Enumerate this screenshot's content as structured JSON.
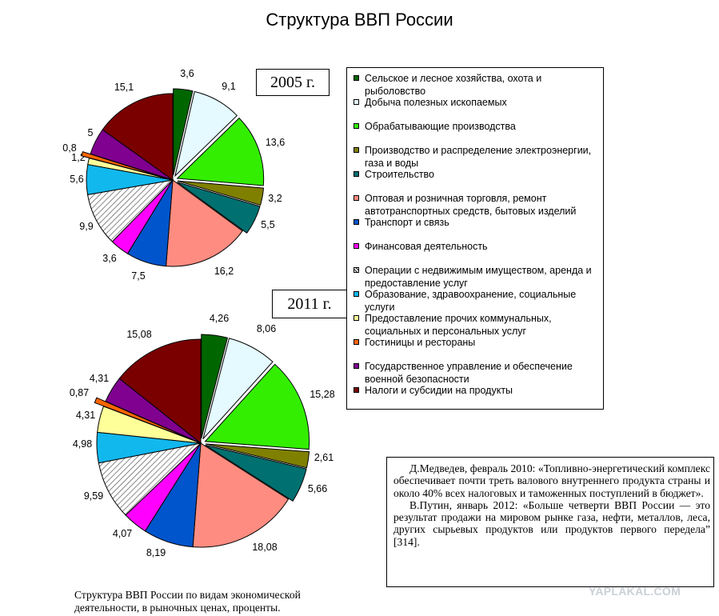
{
  "title": "Структура ВВП России",
  "legend_entries": [
    "Сельское и лесное хозяйства, охота и рыболовство",
    "Добыча полезных ископаемых",
    "Обрабатывающие производства",
    "Производство и распределение электроэнергии, газа и воды",
    "Строительство",
    "Оптовая и розничная торговля, ремонт автотранспортных средств, бытовых изделий",
    "Транспорт и связь",
    "Финансовая деятельность",
    "Операции с недвижимым имуществом, аренда и предоставление услуг",
    "Образование, здравоохранение, социальные услуги",
    "Предоставление прочих коммунальных, социальных и персональных услуг",
    "Гостиницы и рестораны",
    "Государственное управление и обеспечение военной безопасности",
    "Налоги и субсидии на продукты"
  ],
  "series_colors": [
    "#006600",
    "#e4faff",
    "#33ee00",
    "#808000",
    "#007070",
    "#ff8c80",
    "#0055cc",
    "#ff00ff",
    "hatched",
    "#11b8ee",
    "#ffff99",
    "#ff6600",
    "#800090",
    "#7a0000"
  ],
  "chart_data": [
    {
      "type": "pie",
      "title": "2005 г.",
      "categories": [
        "Сельское и лесное хозяйства, охота и рыболовство",
        "Добыча полезных ископаемых",
        "Обрабатывающие производства",
        "Производство и распределение электроэнергии, газа и воды",
        "Строительство",
        "Оптовая и розничная торговля, ремонт автотранспортных средств, бытовых изделий",
        "Транспорт и связь",
        "Финансовая деятельность",
        "Операции с недвижимым имуществом, аренда и предоставление услуг",
        "Образование, здравоохранение, социальные услуги",
        "Предоставление прочих коммунальных, социальных и персональных услуг",
        "Гостиницы и рестораны",
        "Государственное управление и обеспечение военной безопасности",
        "Налоги и субсидии на продукты"
      ],
      "values": [
        3.6,
        9.1,
        13.6,
        3.2,
        5.5,
        16.2,
        7.5,
        3.6,
        9.9,
        5.6,
        1.2,
        0.8,
        5,
        15.1
      ],
      "labels": [
        "3,6",
        "9,1",
        "13,6",
        "3,2",
        "5,5",
        "16,2",
        "7,5",
        "3,6",
        "9,9",
        "5,6",
        "1,2",
        "0,8",
        "5",
        "15,1"
      ]
    },
    {
      "type": "pie",
      "title": "2011 г.",
      "categories": [
        "Сельское и лесное хозяйства, охота и рыболовство",
        "Добыча полезных ископаемых",
        "Обрабатывающие производства",
        "Производство и распределение электроэнергии, газа и воды",
        "Строительство",
        "Оптовая и розничная торговля, ремонт автотранспортных средств, бытовых изделий",
        "Транспорт и связь",
        "Финансовая деятельность",
        "Операции с недвижимым имуществом, аренда и предоставление услуг",
        "Образование, здравоохранение, социальные услуги",
        "Предоставление прочих коммунальных, социальных и персональных услуг",
        "Гостиницы и рестораны",
        "Государственное управление и обеспечение военной безопасности",
        "Налоги и субсидии на продукты"
      ],
      "values": [
        4.26,
        8.06,
        15.28,
        2.61,
        5.66,
        18.08,
        8.19,
        4.07,
        9.59,
        4.98,
        4.31,
        0.87,
        4.31,
        15.08
      ],
      "labels": [
        "4,26",
        "8,06",
        "15,28",
        "2,61",
        "5,66",
        "18,08",
        "8,19",
        "4,07",
        "9,59",
        "4,98",
        "4,31",
        "0,87",
        "4,31",
        "15,08"
      ]
    }
  ],
  "quote": {
    "p1": "Д.Медведев, февраль 2010: «Топливно-энергетический комплекс обеспечивает почти треть валового внутреннего продукта страны и около 40% всех налоговых и таможенных поступлений в бюджет».",
    "p2": "В.Путин, январь 2012: «Больше четверти ВВП России — это результат продажи на мировом рынке газа, нефти, металлов, леса, других сырьевых продуктов или продуктов первого передела” [314]."
  },
  "caption": "Структура ВВП России по видам экономической деятельности, в рыночных ценах, проценты.",
  "watermark": "YAPLAKAL.COM"
}
